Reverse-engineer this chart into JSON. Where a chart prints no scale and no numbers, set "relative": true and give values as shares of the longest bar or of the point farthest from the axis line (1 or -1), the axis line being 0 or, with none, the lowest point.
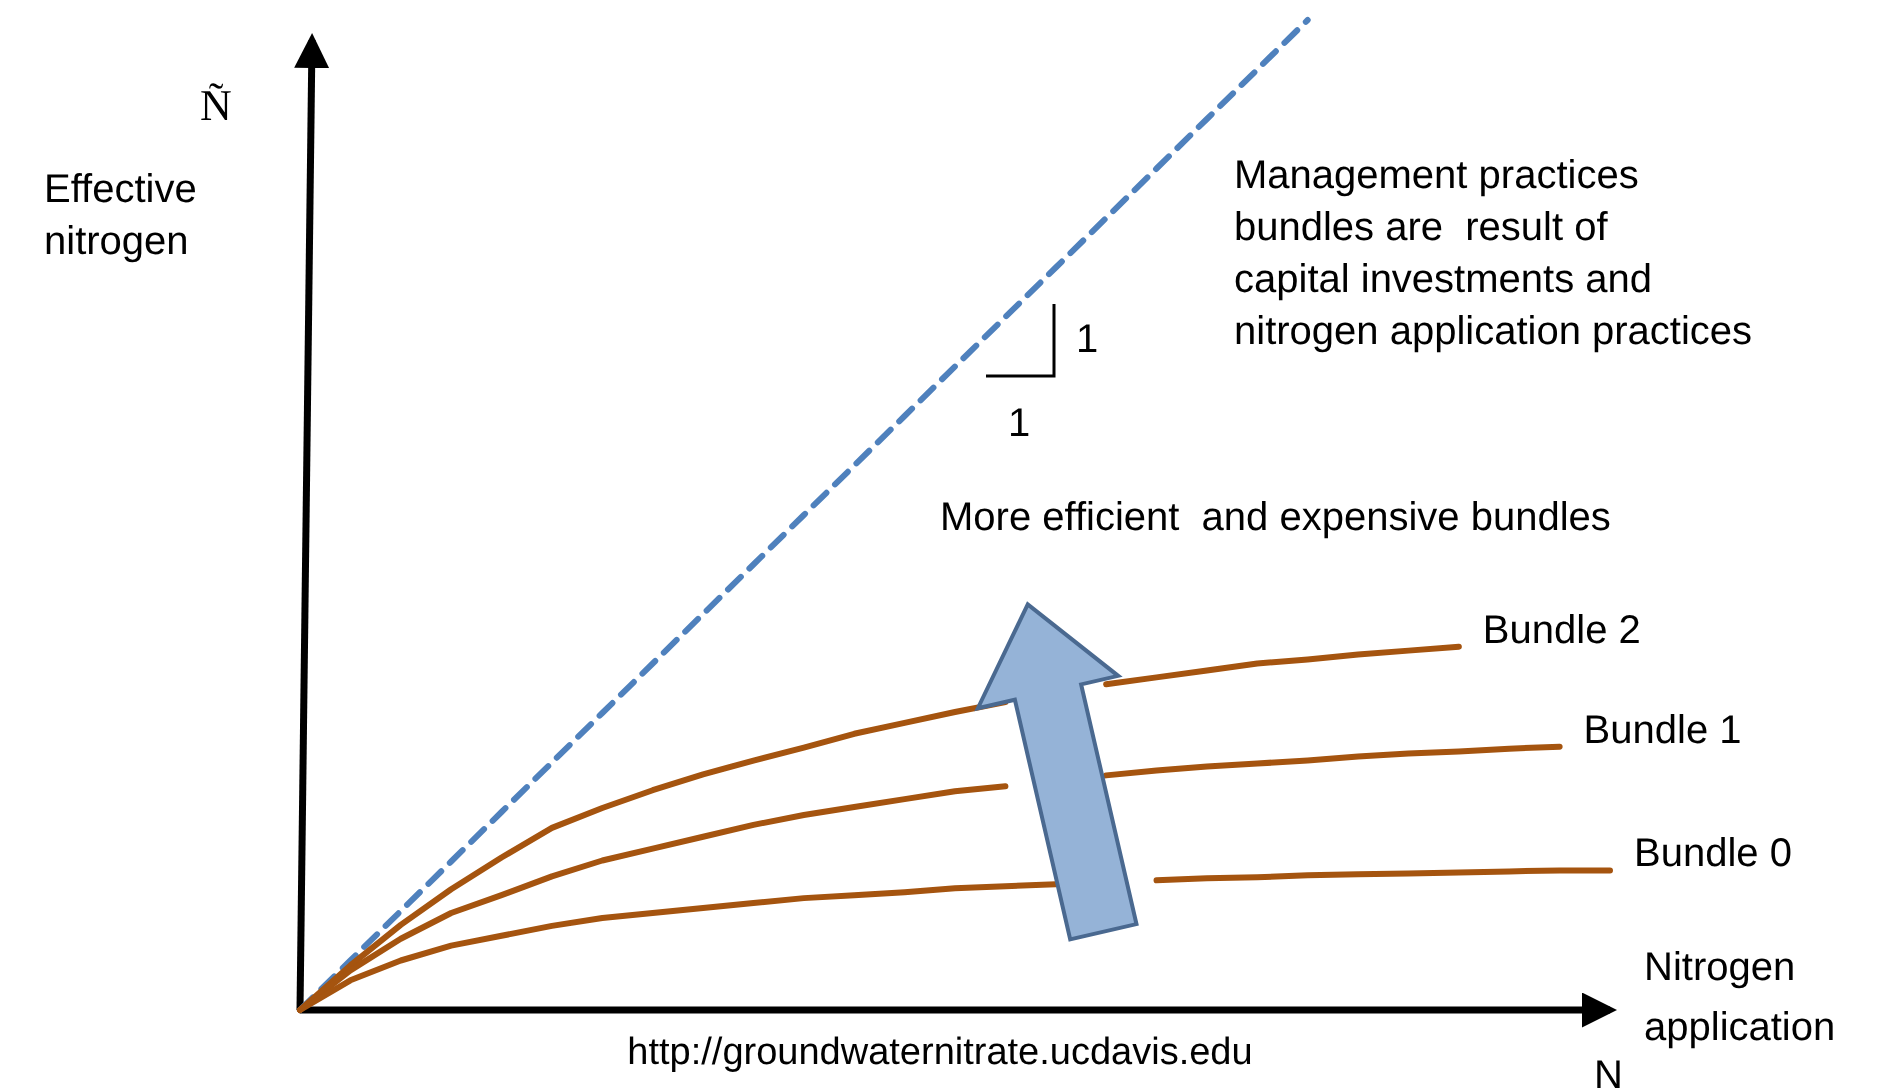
{
  "chart_data": {
    "type": "line",
    "relative": true,
    "ylabel": "Effective\nnitrogen",
    "xlabel": "Nitrogen\napplication",
    "marker": "none",
    "categories": [
      null,
      null,
      null,
      null,
      null,
      null,
      null,
      null,
      null,
      null,
      null,
      null,
      null,
      null,
      null,
      null,
      null,
      null,
      null,
      null,
      null,
      null,
      null,
      null,
      null,
      null,
      null
    ],
    "series": [
      {
        "color": "#4f81bd",
        "line_style": "dashed",
        "values": [
          0,
          0.05,
          0.1,
          0.15,
          0.2,
          0.25,
          0.3,
          0.35,
          0.4,
          0.45,
          0.5,
          0.55,
          0.6,
          0.65,
          0.7,
          0.75,
          0.8,
          0.85,
          0.9,
          0.95,
          1,
          null,
          null,
          null,
          null,
          null,
          null
        ]
      },
      {
        "name": "Bundle 2",
        "color": "#a5540f",
        "values": [
          0,
          0.045,
          0.086,
          0.122,
          0.154,
          0.184,
          0.204,
          0.222,
          0.238,
          0.252,
          0.265,
          0.279,
          0.29,
          0.301,
          0.311,
          null,
          0.329,
          0.336,
          0.343,
          0.35,
          0.354,
          0.359,
          0.363,
          0.367,
          null,
          null,
          null
        ]
      },
      {
        "name": "Bundle 1",
        "color": "#a5540f",
        "values": [
          0,
          0.04,
          0.072,
          0.098,
          0.116,
          0.135,
          0.151,
          0.163,
          0.175,
          0.187,
          0.197,
          0.205,
          0.213,
          0.221,
          0.226,
          null,
          0.237,
          0.242,
          0.246,
          0.249,
          0.252,
          0.256,
          0.259,
          0.261,
          0.264,
          0.266,
          null
        ]
      },
      {
        "name": "Bundle 0",
        "color": "#a5540f",
        "values": [
          0,
          0.03,
          0.05,
          0.065,
          0.075,
          0.085,
          0.093,
          0.098,
          0.103,
          0.108,
          0.113,
          0.116,
          0.119,
          0.123,
          0.125,
          0.127,
          null,
          0.131,
          0.133,
          0.134,
          0.136,
          0.137,
          0.138,
          0.139,
          0.14,
          0.141,
          0.141
        ]
      }
    ],
    "annotations": [
      "Ñ",
      "N",
      "Management practices\nbundles are  result of\ncapital investments and\nnitrogen application practices",
      "1",
      "1",
      "More efficient  and expensive bundles",
      "http://groundwaternitrate.ucdavis.edu"
    ]
  }
}
